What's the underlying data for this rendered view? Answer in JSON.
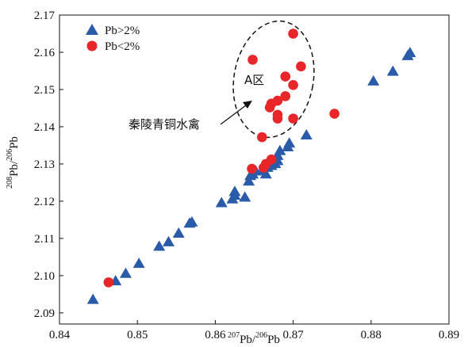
{
  "chart_data": {
    "type": "scatter",
    "xlim": [
      0.84,
      0.89
    ],
    "ylim": [
      2.087,
      2.17
    ],
    "x_ticks": [
      "0.84",
      "0.85",
      "0.86",
      "0.87",
      "0.88",
      "0.89"
    ],
    "y_ticks": [
      "2.09",
      "2.10",
      "2.11",
      "2.12",
      "2.13",
      "2.14",
      "2.15",
      "2.16",
      "2.17"
    ],
    "xlabel": {
      "sup1": "207",
      "base1": "Pb/",
      "sup2": "206",
      "base2": "Pb"
    },
    "ylabel": {
      "sup1": "208",
      "base1": "Pb/",
      "sup2": "206",
      "base2": "Pb"
    },
    "legend_position": "top-left",
    "grid": false,
    "series": [
      {
        "name": "Pb>2%",
        "marker": "triangle",
        "color": "#2a5ba8",
        "points": [
          [
            0.8443,
            2.0935
          ],
          [
            0.8472,
            2.0985
          ],
          [
            0.8485,
            2.1005
          ],
          [
            0.8502,
            2.1032
          ],
          [
            0.8528,
            2.1078
          ],
          [
            0.854,
            2.109
          ],
          [
            0.8553,
            2.1113
          ],
          [
            0.8567,
            2.114
          ],
          [
            0.857,
            2.1143
          ],
          [
            0.8608,
            2.1195
          ],
          [
            0.8622,
            2.1205
          ],
          [
            0.8625,
            2.1215
          ],
          [
            0.8625,
            2.1225
          ],
          [
            0.8638,
            2.121
          ],
          [
            0.8643,
            2.1253
          ],
          [
            0.8645,
            2.1268
          ],
          [
            0.8648,
            2.1272
          ],
          [
            0.8652,
            2.128
          ],
          [
            0.866,
            2.1282
          ],
          [
            0.8665,
            2.1272
          ],
          [
            0.8667,
            2.129
          ],
          [
            0.8672,
            2.1295
          ],
          [
            0.8677,
            2.13
          ],
          [
            0.868,
            2.1308
          ],
          [
            0.868,
            2.1322
          ],
          [
            0.8683,
            2.1335
          ],
          [
            0.8693,
            2.1345
          ],
          [
            0.8695,
            2.1355
          ],
          [
            0.8717,
            2.1377
          ],
          [
            0.8803,
            2.1522
          ],
          [
            0.8828,
            2.1548
          ],
          [
            0.8847,
            2.159
          ],
          [
            0.885,
            2.1598
          ]
        ]
      },
      {
        "name": "Pb<2%",
        "marker": "circle",
        "color": "#e8262a",
        "points": [
          [
            0.8463,
            2.0982
          ],
          [
            0.8647,
            2.1287
          ],
          [
            0.8662,
            2.129
          ],
          [
            0.8665,
            2.13
          ],
          [
            0.8672,
            2.1312
          ],
          [
            0.866,
            2.1372
          ],
          [
            0.8648,
            2.158
          ],
          [
            0.869,
            2.1535
          ],
          [
            0.87,
            2.1512
          ],
          [
            0.871,
            2.1562
          ],
          [
            0.87,
            2.165
          ],
          [
            0.869,
            2.1482
          ],
          [
            0.868,
            2.147
          ],
          [
            0.8672,
            2.1462
          ],
          [
            0.867,
            2.1452
          ],
          [
            0.868,
            2.1432
          ],
          [
            0.868,
            2.1422
          ],
          [
            0.87,
            2.1422
          ],
          [
            0.8753,
            2.1435
          ]
        ]
      }
    ],
    "annotations": {
      "region_label": "A区",
      "arrow_label": "秦陵青铜水禽"
    }
  }
}
